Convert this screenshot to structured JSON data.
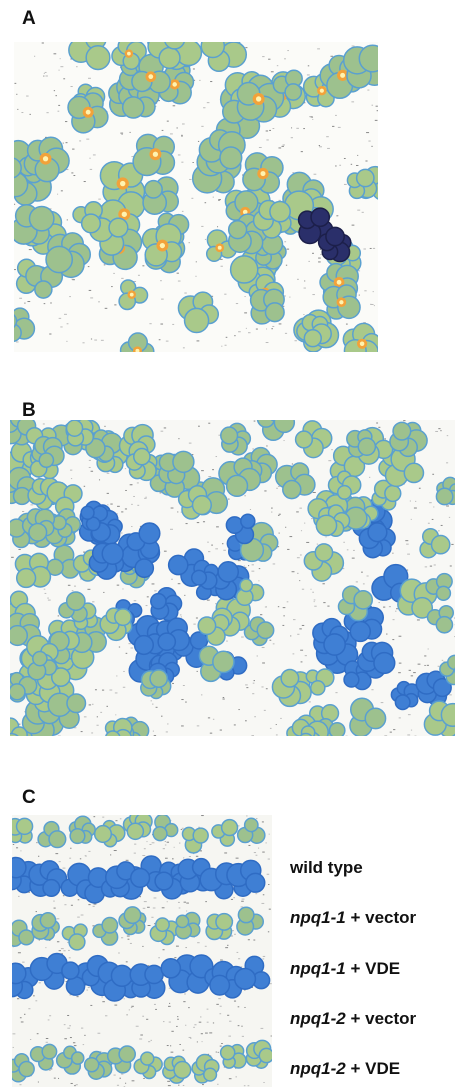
{
  "panels": [
    {
      "label": "A"
    },
    {
      "label": "B"
    },
    {
      "label": "C"
    }
  ],
  "legend": [
    {
      "text": "wild type"
    },
    {
      "genotype": "npq1-1",
      "construct": "+ vector"
    },
    {
      "genotype": "npq1-1",
      "construct": "+ VDE"
    },
    {
      "genotype": "npq1-2",
      "construct": "+ vector"
    },
    {
      "genotype": "npq1-2",
      "construct": "+ VDE"
    }
  ]
}
